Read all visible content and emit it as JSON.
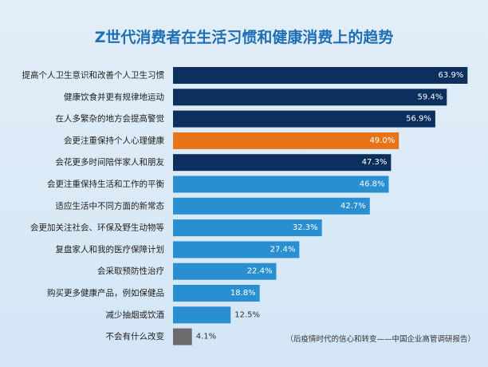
{
  "chart_data": {
    "type": "bar",
    "orientation": "horizontal",
    "title": "Z世代消费者在生活习惯和健康消费上的趋势",
    "source": "（后疫情时代的信心和转变——中国企业高管调研报告）",
    "value_suffix": "%",
    "xlim": [
      0,
      70
    ],
    "grid": false,
    "categories": [
      "提高个人卫生意识和改善个人卫生习惯",
      "健康饮食并更有规律地运动",
      "在人多繁杂的地方会提高警觉",
      "会更注重保持个人心理健康",
      "会花更多时间陪伴家人和朋友",
      "会更注重保持生活和工作的平衡",
      "适应生活中不同方面的新常态",
      "会更加关注社会、环保及野生动物等",
      "复盘家人和我的医疗保障计划",
      "会采取预防性治疗",
      "购买更多健康产品，例如保健品",
      "减少抽烟或饮酒",
      "不会有什么改变"
    ],
    "values": [
      63.9,
      59.4,
      56.9,
      49.0,
      47.3,
      46.8,
      42.7,
      32.3,
      27.4,
      22.4,
      18.8,
      12.5,
      4.1
    ],
    "value_labels": [
      "63.9%",
      "59.4%",
      "56.9%",
      "49.0%",
      "47.3%",
      "46.8%",
      "42.7%",
      "32.3%",
      "27.4%",
      "22.4%",
      "18.8%",
      "12.5%",
      "4.1%"
    ],
    "bar_colors": [
      "#0d2f5e",
      "#0d2f5e",
      "#0d2f5e",
      "#e8741a",
      "#0d2f5e",
      "#2a8fd1",
      "#2a8fd1",
      "#2a8fd1",
      "#2a8fd1",
      "#2a8fd1",
      "#2a8fd1",
      "#2a8fd1",
      "#6b6b6b"
    ],
    "label_inside": [
      true,
      true,
      true,
      true,
      true,
      true,
      true,
      true,
      true,
      true,
      true,
      false,
      false
    ]
  }
}
